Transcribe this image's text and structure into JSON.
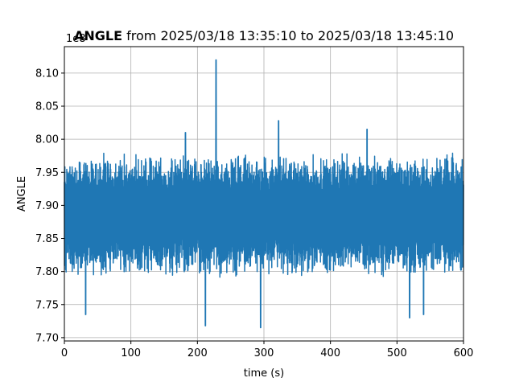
{
  "chart_data": {
    "type": "line",
    "title_bold": "ANGLE",
    "title_rest": " from 2025/03/18 13:35:10 to 2025/03/18 13:45:10",
    "xlabel": "time (s)",
    "ylabel": "ANGLE",
    "offset_label": "1e8",
    "xlim": [
      0,
      600
    ],
    "ylim": [
      7.695,
      8.14
    ],
    "x_ticks": [
      0,
      100,
      200,
      300,
      400,
      500,
      600
    ],
    "x_tick_labels": [
      "0",
      "100",
      "200",
      "300",
      "400",
      "500",
      "600"
    ],
    "y_ticks": [
      7.7,
      7.75,
      7.8,
      7.85,
      7.9,
      7.95,
      8.0,
      8.05,
      8.1
    ],
    "y_tick_labels": [
      "7.70",
      "7.75",
      "7.80",
      "7.85",
      "7.90",
      "7.95",
      "8.00",
      "8.05",
      "8.10"
    ],
    "grid": true,
    "series": [
      {
        "color": "#1f77b4",
        "x": [
          0,
          15,
          30,
          45,
          60,
          75,
          90,
          105,
          120,
          135,
          150,
          165,
          180,
          195,
          210,
          228,
          240,
          255,
          270,
          285,
          300,
          315,
          322,
          330,
          345,
          360,
          375,
          390,
          405,
          420,
          435,
          450,
          455,
          465,
          480,
          495,
          510,
          525,
          540,
          555,
          570,
          585,
          600
        ],
        "y": [
          7.89,
          7.93,
          7.87,
          7.91,
          7.85,
          7.92,
          7.88,
          7.9,
          7.86,
          7.93,
          7.88,
          7.91,
          7.87,
          7.92,
          7.89,
          8.12,
          7.86,
          7.92,
          7.88,
          7.9,
          7.87,
          7.93,
          8.03,
          7.88,
          7.91,
          7.86,
          7.92,
          7.89,
          7.9,
          7.87,
          7.93,
          7.88,
          8.01,
          7.86,
          7.91,
          7.88,
          7.92,
          7.85,
          7.9,
          7.87,
          7.91,
          7.88,
          7.9
        ],
        "envelope_note": "dense signal; ~7.80 to ~7.97 most of the time, spikes up to ~8.12 and down to ~7.715"
      }
    ],
    "extremes": [
      {
        "x": 228,
        "y": 8.12
      },
      {
        "x": 322,
        "y": 8.028
      },
      {
        "x": 455,
        "y": 8.015
      },
      {
        "x": 182,
        "y": 8.01
      },
      {
        "x": 32,
        "y": 7.735
      },
      {
        "x": 212,
        "y": 7.718
      },
      {
        "x": 295,
        "y": 7.715
      },
      {
        "x": 519,
        "y": 7.73
      },
      {
        "x": 540,
        "y": 7.735
      }
    ]
  }
}
